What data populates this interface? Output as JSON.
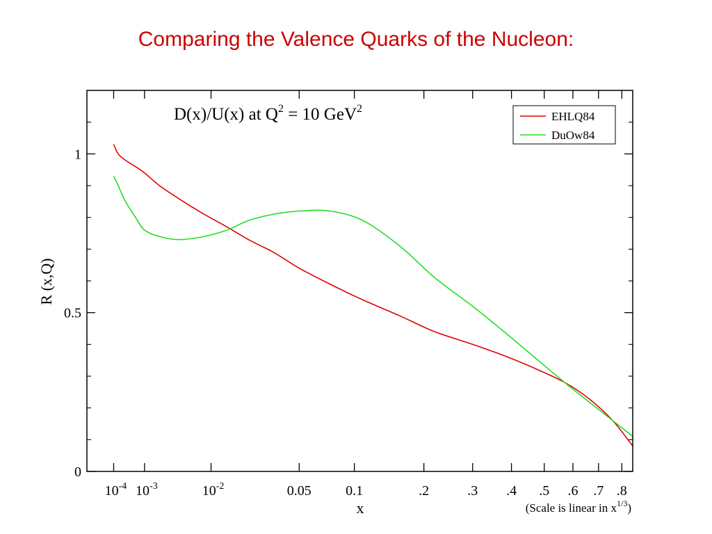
{
  "slide": {
    "title": "Comparing the Valence Quarks of the Nucleon:"
  },
  "chart_data": {
    "type": "line",
    "title_main": "D(x)/U(x) at Q",
    "title_exp1": "2",
    "title_mid": " = 10 GeV",
    "title_exp2": "2",
    "xlabel": "x",
    "ylabel": "R (x,Q)",
    "x_scale": "linear in x^(1/3)",
    "x_note_main": "(Scale is linear in x",
    "x_note_exp": "1/3",
    "x_note_end": ")",
    "xlim": [
      0.0,
      0.85
    ],
    "ylim": [
      0,
      1.2
    ],
    "x_ticks": [
      {
        "value": 0.0001,
        "base": "10",
        "exp": "-4"
      },
      {
        "value": 0.001,
        "base": "10",
        "exp": "-3"
      },
      {
        "value": 0.01,
        "base": "10",
        "exp": "-2"
      },
      {
        "value": 0.05,
        "label": "0.05"
      },
      {
        "value": 0.1,
        "label": "0.1"
      },
      {
        "value": 0.2,
        "label": ".2"
      },
      {
        "value": 0.3,
        "label": ".3"
      },
      {
        "value": 0.4,
        "label": ".4"
      },
      {
        "value": 0.5,
        "label": ".5"
      },
      {
        "value": 0.6,
        "label": ".6"
      },
      {
        "value": 0.7,
        "label": ".7"
      },
      {
        "value": 0.8,
        "label": ".8"
      }
    ],
    "y_ticks": [
      {
        "value": 0,
        "label": "0"
      },
      {
        "value": 0.5,
        "label": "0.5"
      },
      {
        "value": 1,
        "label": "1"
      }
    ],
    "y_minor_ticks": [
      0.1,
      0.2,
      0.3,
      0.4,
      0.6,
      0.7,
      0.8,
      0.9,
      1.1
    ],
    "legend_position": "top-right",
    "series": [
      {
        "name": "EHLQ84",
        "color": "#e00000",
        "x": [
          0.0001,
          0.00016,
          0.0003,
          0.0006,
          0.001,
          0.002,
          0.004,
          0.0084,
          0.0144,
          0.022,
          0.034,
          0.05,
          0.075,
          0.11,
          0.16,
          0.22,
          0.3,
          0.39,
          0.48,
          0.57,
          0.66,
          0.76,
          0.85
        ],
        "values": [
          1.03,
          1.0,
          0.98,
          0.96,
          0.94,
          0.9,
          0.86,
          0.81,
          0.77,
          0.73,
          0.69,
          0.64,
          0.59,
          0.54,
          0.49,
          0.44,
          0.4,
          0.36,
          0.32,
          0.28,
          0.23,
          0.16,
          0.08
        ]
      },
      {
        "name": "DuOw84",
        "color": "#22dd22",
        "x": [
          0.0001,
          0.00016,
          0.0003,
          0.0006,
          0.001,
          0.002,
          0.004,
          0.0084,
          0.0144,
          0.022,
          0.034,
          0.05,
          0.075,
          0.11,
          0.16,
          0.22,
          0.3,
          0.39,
          0.48,
          0.57,
          0.66,
          0.76,
          0.85
        ],
        "values": [
          0.93,
          0.9,
          0.85,
          0.8,
          0.76,
          0.74,
          0.73,
          0.74,
          0.76,
          0.79,
          0.81,
          0.82,
          0.82,
          0.79,
          0.71,
          0.61,
          0.52,
          0.43,
          0.35,
          0.28,
          0.22,
          0.16,
          0.11
        ]
      }
    ]
  }
}
